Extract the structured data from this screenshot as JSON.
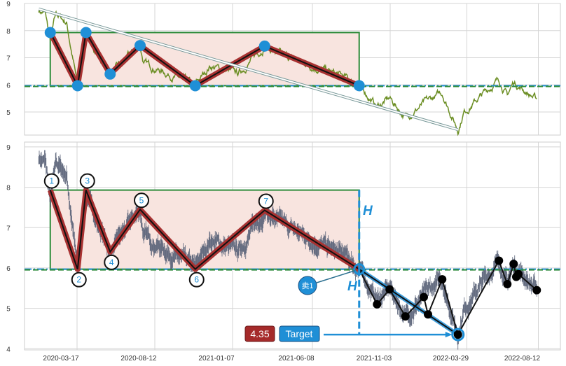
{
  "chart_data": [
    {
      "type": "line",
      "panel": "top",
      "ylim": [
        4.15,
        9
      ],
      "yticks": [
        5,
        6,
        7,
        8,
        9
      ],
      "grid": true,
      "colors": {
        "price": "#6b8e23",
        "zigzag_outer": "#a83232",
        "zigzag_inner": "#111111",
        "pivot": "#1f8fd6",
        "box_fill": "#f8e4df",
        "box_edge": "#2e8b3a",
        "neckline": "#2e8b3a",
        "neckline_alt": "#1f8fd6"
      },
      "pivots": [
        [
          "2020-01-30",
          7.93
        ],
        [
          "2020-03-22",
          5.97
        ],
        [
          "2020-04-07",
          7.93
        ],
        [
          "2020-05-23",
          6.4
        ],
        [
          "2020-07-19",
          7.45
        ],
        [
          "2020-11-01",
          5.97
        ],
        [
          "2021-03-13",
          7.43
        ],
        [
          "2021-09-09",
          5.97
        ]
      ],
      "box": {
        "start": "2020-01-30",
        "end": "2021-09-09",
        "low": 5.97,
        "high": 7.93
      },
      "neckline": 5.97,
      "trend_arrow": {
        "from": [
          "2020-01-08",
          8.8
        ],
        "to": [
          "2022-03-16",
          4.35
        ]
      }
    },
    {
      "type": "line",
      "panel": "bottom",
      "ylim": [
        3.97,
        9.12
      ],
      "yticks": [
        4,
        5,
        6,
        7,
        8,
        9
      ],
      "grid": true,
      "xticks": [
        "2020-03-17",
        "2020-08-12",
        "2021-01-07",
        "2021-06-08",
        "2021-11-03",
        "2022-03-29",
        "2022-08-12"
      ],
      "pivot_labels": [
        "1",
        "2",
        "3",
        "4",
        "5",
        "6",
        "7"
      ],
      "future_pivots": [
        [
          "2021-09-09",
          5.97
        ],
        [
          "2021-10-13",
          5.1
        ],
        [
          "2021-11-06",
          5.47
        ],
        [
          "2021-12-06",
          4.8
        ],
        [
          "2022-01-10",
          5.28
        ],
        [
          "2022-01-18",
          4.85
        ],
        [
          "2022-02-14",
          5.72
        ],
        [
          "2022-03-16",
          4.35
        ],
        [
          "2022-06-02",
          6.18
        ],
        [
          "2022-06-18",
          5.6
        ],
        [
          "2022-06-30",
          6.1
        ],
        [
          "2022-07-05",
          5.78
        ],
        [
          "2022-07-09",
          5.85
        ],
        [
          "2022-08-13",
          5.45
        ]
      ],
      "annotations": {
        "height_label": "H",
        "signal_label": "卖1",
        "target_value": "4.35",
        "target_label": "Target"
      },
      "colors": {
        "bars": "#5a6378",
        "target": "#1f8fd6",
        "target_value_bg": "#a52a2a"
      }
    }
  ],
  "price_path": [
    [
      "2020-01-08",
      8.75
    ],
    [
      "2020-01-21",
      8.6
    ],
    [
      "2020-01-30",
      7.6
    ],
    [
      "2020-02-10",
      8.6
    ],
    [
      "2020-03-01",
      8.3
    ],
    [
      "2020-03-22",
      5.97
    ],
    [
      "2020-04-01",
      7.3
    ],
    [
      "2020-04-07",
      7.93
    ],
    [
      "2020-04-17",
      7.5
    ],
    [
      "2020-05-23",
      6.4
    ],
    [
      "2020-07-19",
      7.45
    ],
    [
      "2020-07-26",
      6.8
    ],
    [
      "2020-11-01",
      5.97
    ],
    [
      "2020-11-29",
      6.7
    ],
    [
      "2021-01-22",
      6.4
    ],
    [
      "2021-03-13",
      7.43
    ],
    [
      "2021-04-12",
      7.1
    ],
    [
      "2021-08-10",
      6.3
    ],
    [
      "2021-09-09",
      5.97
    ],
    [
      "2021-10-13",
      5.2
    ],
    [
      "2021-11-06",
      5.5
    ],
    [
      "2021-12-06",
      4.8
    ],
    [
      "2022-01-10",
      5.3
    ],
    [
      "2022-02-14",
      5.7
    ],
    [
      "2022-03-16",
      4.35
    ],
    [
      "2022-03-27",
      5.0
    ],
    [
      "2022-06-02",
      6.2
    ],
    [
      "2022-06-18",
      5.6
    ],
    [
      "2022-06-30",
      6.1
    ],
    [
      "2022-08-13",
      5.45
    ]
  ]
}
